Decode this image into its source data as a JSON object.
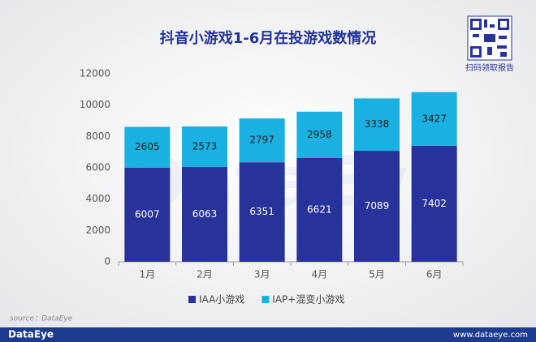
{
  "chart_data": {
    "type": "stacked_bar",
    "title": "抖音小游戏1-6月在投游戏数情况",
    "categories": [
      "1月",
      "2月",
      "3月",
      "4月",
      "5月",
      "6月"
    ],
    "series": [
      {
        "name": "IAA小游戏",
        "color": "#27339a",
        "values": [
          6007,
          6063,
          6351,
          6621,
          7089,
          7402
        ]
      },
      {
        "name": "IAP+混变小游戏",
        "color": "#1bb0e2",
        "values": [
          2605,
          2573,
          2797,
          2958,
          3338,
          3427
        ]
      }
    ],
    "ylim": [
      0,
      12000
    ],
    "yticks": [
      0,
      2000,
      4000,
      6000,
      8000,
      10000,
      12000
    ],
    "grid": false,
    "legend": "bottom"
  },
  "page": {
    "qr_caption": "扫码领取报告",
    "source": "source：DataEye",
    "watermark": "DataEye",
    "footer_brand": "DataEye",
    "footer_url": "www.dataeye.com"
  }
}
